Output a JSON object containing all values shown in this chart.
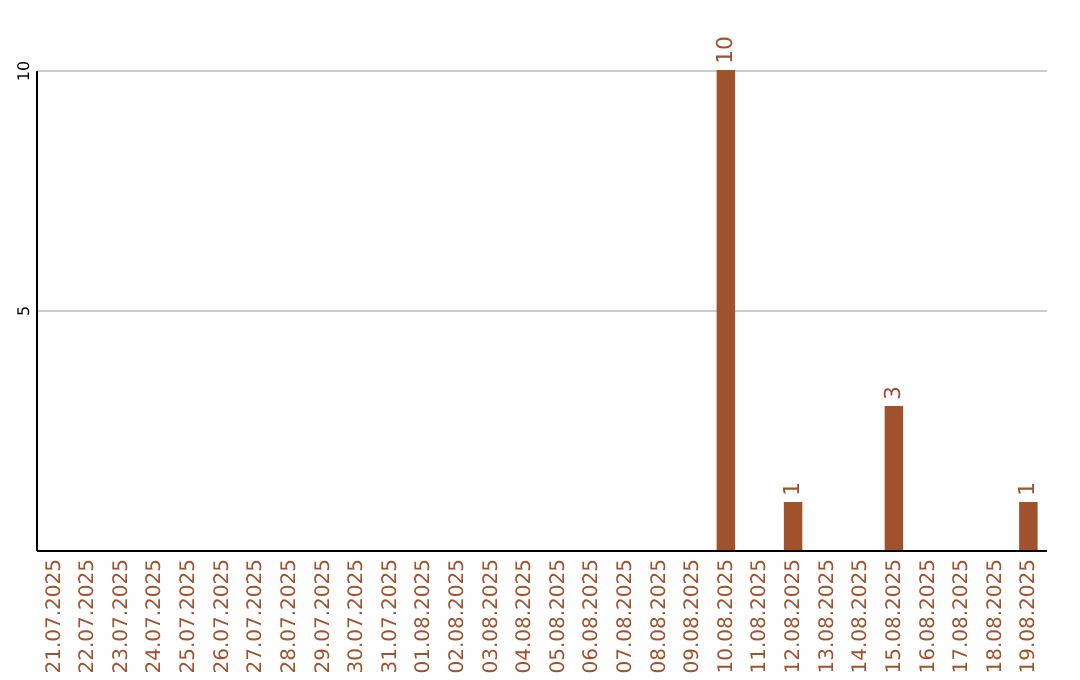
{
  "chart_data": {
    "type": "bar",
    "categories": [
      "21.07.2025",
      "22.07.2025",
      "23.07.2025",
      "24.07.2025",
      "25.07.2025",
      "26.07.2025",
      "27.07.2025",
      "28.07.2025",
      "29.07.2025",
      "30.07.2025",
      "31.07.2025",
      "01.08.2025",
      "02.08.2025",
      "03.08.2025",
      "04.08.2025",
      "05.08.2025",
      "06.08.2025",
      "07.08.2025",
      "08.08.2025",
      "09.08.2025",
      "10.08.2025",
      "11.08.2025",
      "12.08.2025",
      "13.08.2025",
      "14.08.2025",
      "15.08.2025",
      "16.08.2025",
      "17.08.2025",
      "18.08.2025",
      "19.08.2025"
    ],
    "values": [
      0,
      0,
      0,
      0,
      0,
      0,
      0,
      0,
      0,
      0,
      0,
      0,
      0,
      0,
      0,
      0,
      0,
      0,
      0,
      0,
      10,
      0,
      1,
      0,
      0,
      3,
      0,
      0,
      0,
      1
    ],
    "value_labels": [
      null,
      null,
      null,
      null,
      null,
      null,
      null,
      null,
      null,
      null,
      null,
      null,
      null,
      null,
      null,
      null,
      null,
      null,
      null,
      null,
      "10",
      null,
      "1",
      null,
      null,
      "3",
      null,
      null,
      null,
      "1"
    ],
    "color": "#a0522d",
    "ylim": [
      0,
      10
    ],
    "yticks": [
      5,
      10
    ],
    "grid": "y"
  }
}
